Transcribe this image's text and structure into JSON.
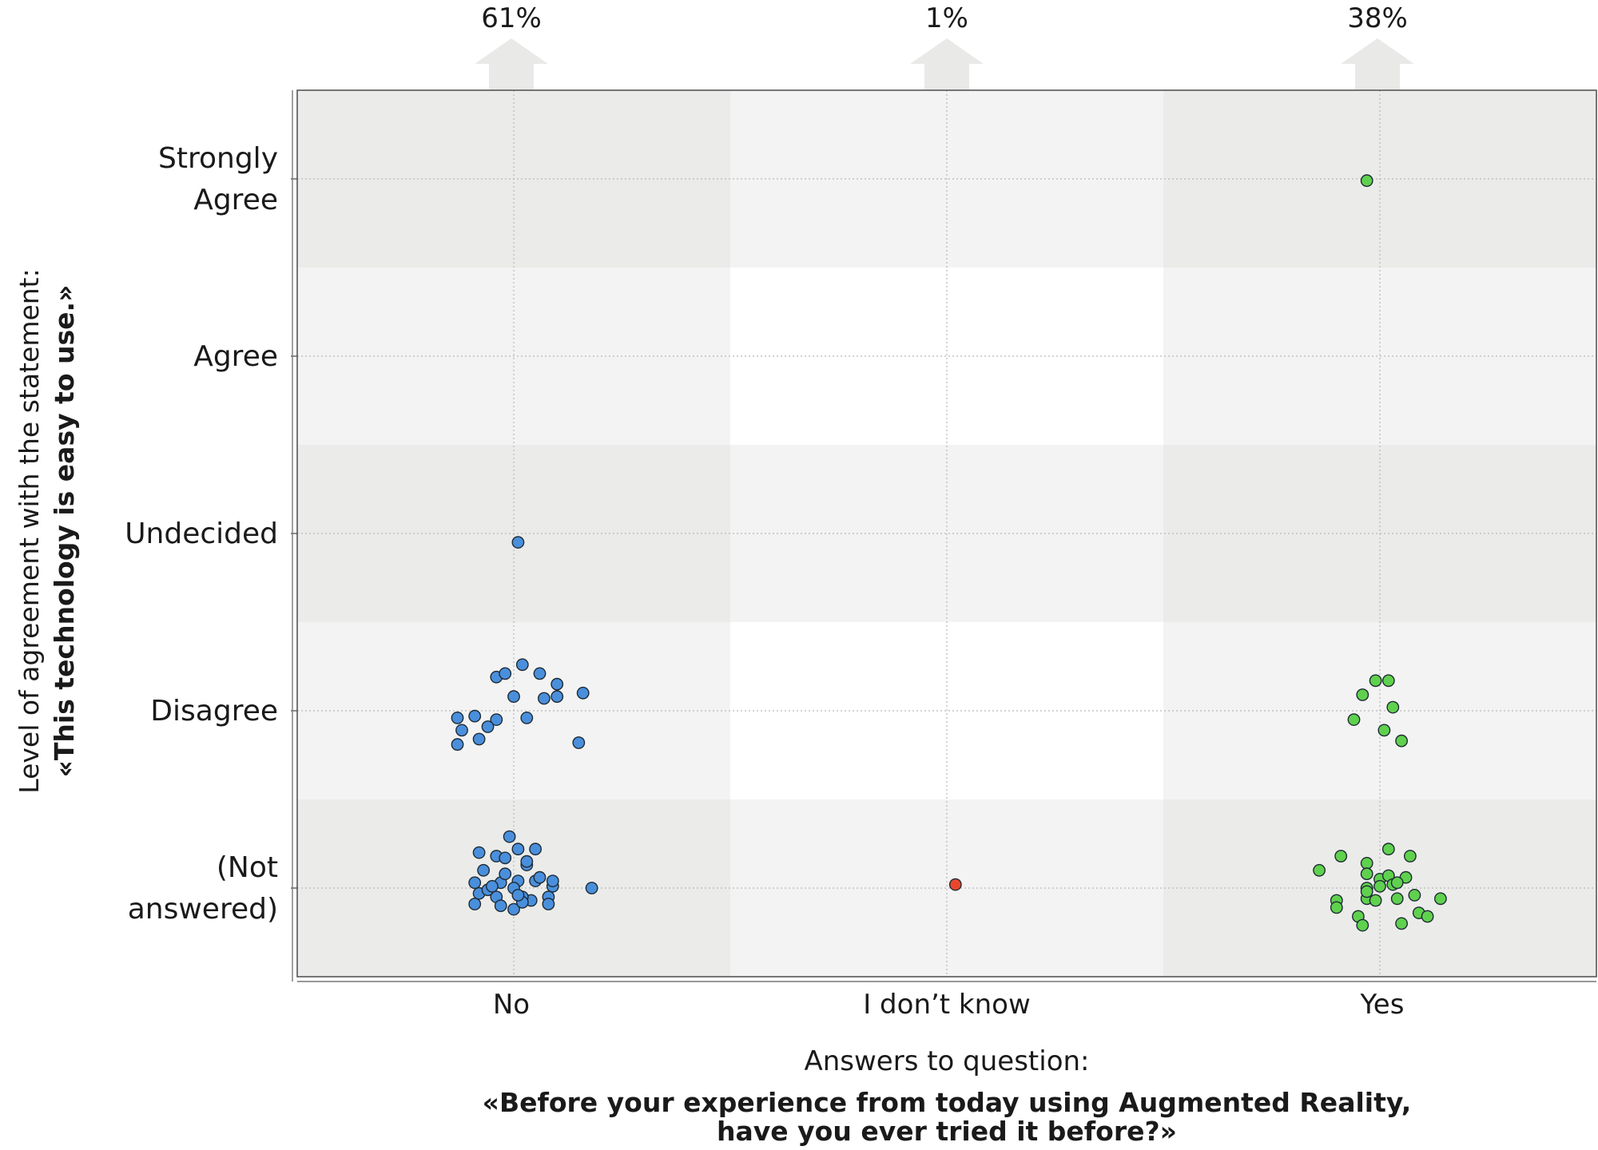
{
  "chart_data": {
    "type": "scatter",
    "subtype": "jitter-strip",
    "categories": [
      "No",
      "I don’t know",
      "Yes"
    ],
    "category_percentages": [
      "61%",
      "1%",
      "38%"
    ],
    "levels": [
      "Strongly\nAgree",
      "Agree",
      "Undecided",
      "Disagree",
      "(Not\nanswered)"
    ],
    "xlabel": "Answers to question:",
    "xlabel_bold_lines": [
      "«Before your experience from today using Augmented Reality,",
      "have you ever tried it before?»"
    ],
    "ylabel": "Level of agreement with the statement:",
    "ylabel_bold": "«This technology is easy to use.»",
    "grid": true,
    "colors": {
      "No": "#4a8fdc",
      "I don’t know": "#e8472c",
      "Yes": "#5fd14e"
    },
    "series": [
      {
        "name": "No",
        "points": [
          [
            -0.09,
            -0.09
          ],
          [
            0.0,
            -0.12
          ],
          [
            0.04,
            -0.07
          ],
          [
            -0.08,
            -0.03
          ],
          [
            -0.04,
            -0.05
          ],
          [
            0.02,
            -0.05
          ],
          [
            0.08,
            -0.05
          ],
          [
            -0.09,
            0.03
          ],
          [
            -0.03,
            0.03
          ],
          [
            0.01,
            0.04
          ],
          [
            0.05,
            0.04
          ],
          [
            0.09,
            0.01
          ],
          [
            -0.07,
            0.1
          ],
          [
            -0.02,
            0.08
          ],
          [
            0.03,
            0.13
          ],
          [
            0.06,
            0.06
          ],
          [
            0.18,
            0.0
          ],
          [
            -0.04,
            0.18
          ],
          [
            0.03,
            0.15
          ],
          [
            -0.02,
            0.17
          ],
          [
            0.01,
            0.22
          ],
          [
            0.05,
            0.22
          ],
          [
            -0.01,
            0.29
          ],
          [
            -0.08,
            0.2
          ],
          [
            0.09,
            0.04
          ],
          [
            -0.06,
            -0.01
          ],
          [
            0.02,
            -0.08
          ],
          [
            -0.03,
            -0.1
          ],
          [
            0.0,
            0.0
          ],
          [
            -0.05,
            0.01
          ],
          [
            0.08,
            -0.09
          ],
          [
            -0.04,
            1.19
          ],
          [
            -0.02,
            1.21
          ],
          [
            0.02,
            1.26
          ],
          [
            0.06,
            1.21
          ],
          [
            0.1,
            1.15
          ],
          [
            0.16,
            1.1
          ],
          [
            0.1,
            1.08
          ],
          [
            0.07,
            1.07
          ],
          [
            0.0,
            1.08
          ],
          [
            -0.13,
            0.96
          ],
          [
            -0.09,
            0.97
          ],
          [
            -0.04,
            0.95
          ],
          [
            0.03,
            0.96
          ],
          [
            -0.12,
            0.89
          ],
          [
            -0.06,
            0.91
          ],
          [
            -0.08,
            0.84
          ],
          [
            -0.13,
            0.81
          ],
          [
            0.15,
            0.82
          ],
          [
            0.01,
            1.95
          ],
          [
            0.01,
            -0.04
          ]
        ]
      },
      {
        "name": "I don’t know",
        "points": [
          [
            0.02,
            0.02
          ]
        ]
      },
      {
        "name": "Yes",
        "points": [
          [
            -0.14,
            0.1
          ],
          [
            -0.09,
            0.18
          ],
          [
            0.02,
            0.22
          ],
          [
            0.07,
            0.18
          ],
          [
            -0.03,
            0.14
          ],
          [
            -0.03,
            0.08
          ],
          [
            0.0,
            0.05
          ],
          [
            0.02,
            0.07
          ],
          [
            0.06,
            0.06
          ],
          [
            -0.03,
            0.0
          ],
          [
            0.0,
            0.01
          ],
          [
            0.03,
            0.02
          ],
          [
            0.04,
            0.03
          ],
          [
            0.08,
            -0.04
          ],
          [
            0.14,
            -0.06
          ],
          [
            -0.03,
            -0.06
          ],
          [
            -0.1,
            -0.07
          ],
          [
            -0.1,
            -0.11
          ],
          [
            -0.01,
            -0.07
          ],
          [
            0.04,
            -0.06
          ],
          [
            -0.05,
            -0.16
          ],
          [
            -0.04,
            -0.21
          ],
          [
            0.05,
            -0.2
          ],
          [
            0.09,
            -0.14
          ],
          [
            0.11,
            -0.16
          ],
          [
            -0.04,
            1.09
          ],
          [
            -0.01,
            1.17
          ],
          [
            0.02,
            1.17
          ],
          [
            0.03,
            1.02
          ],
          [
            -0.06,
            0.95
          ],
          [
            0.01,
            0.89
          ],
          [
            0.05,
            0.83
          ],
          [
            -0.03,
            3.99
          ],
          [
            -0.03,
            -0.02
          ]
        ]
      }
    ]
  }
}
